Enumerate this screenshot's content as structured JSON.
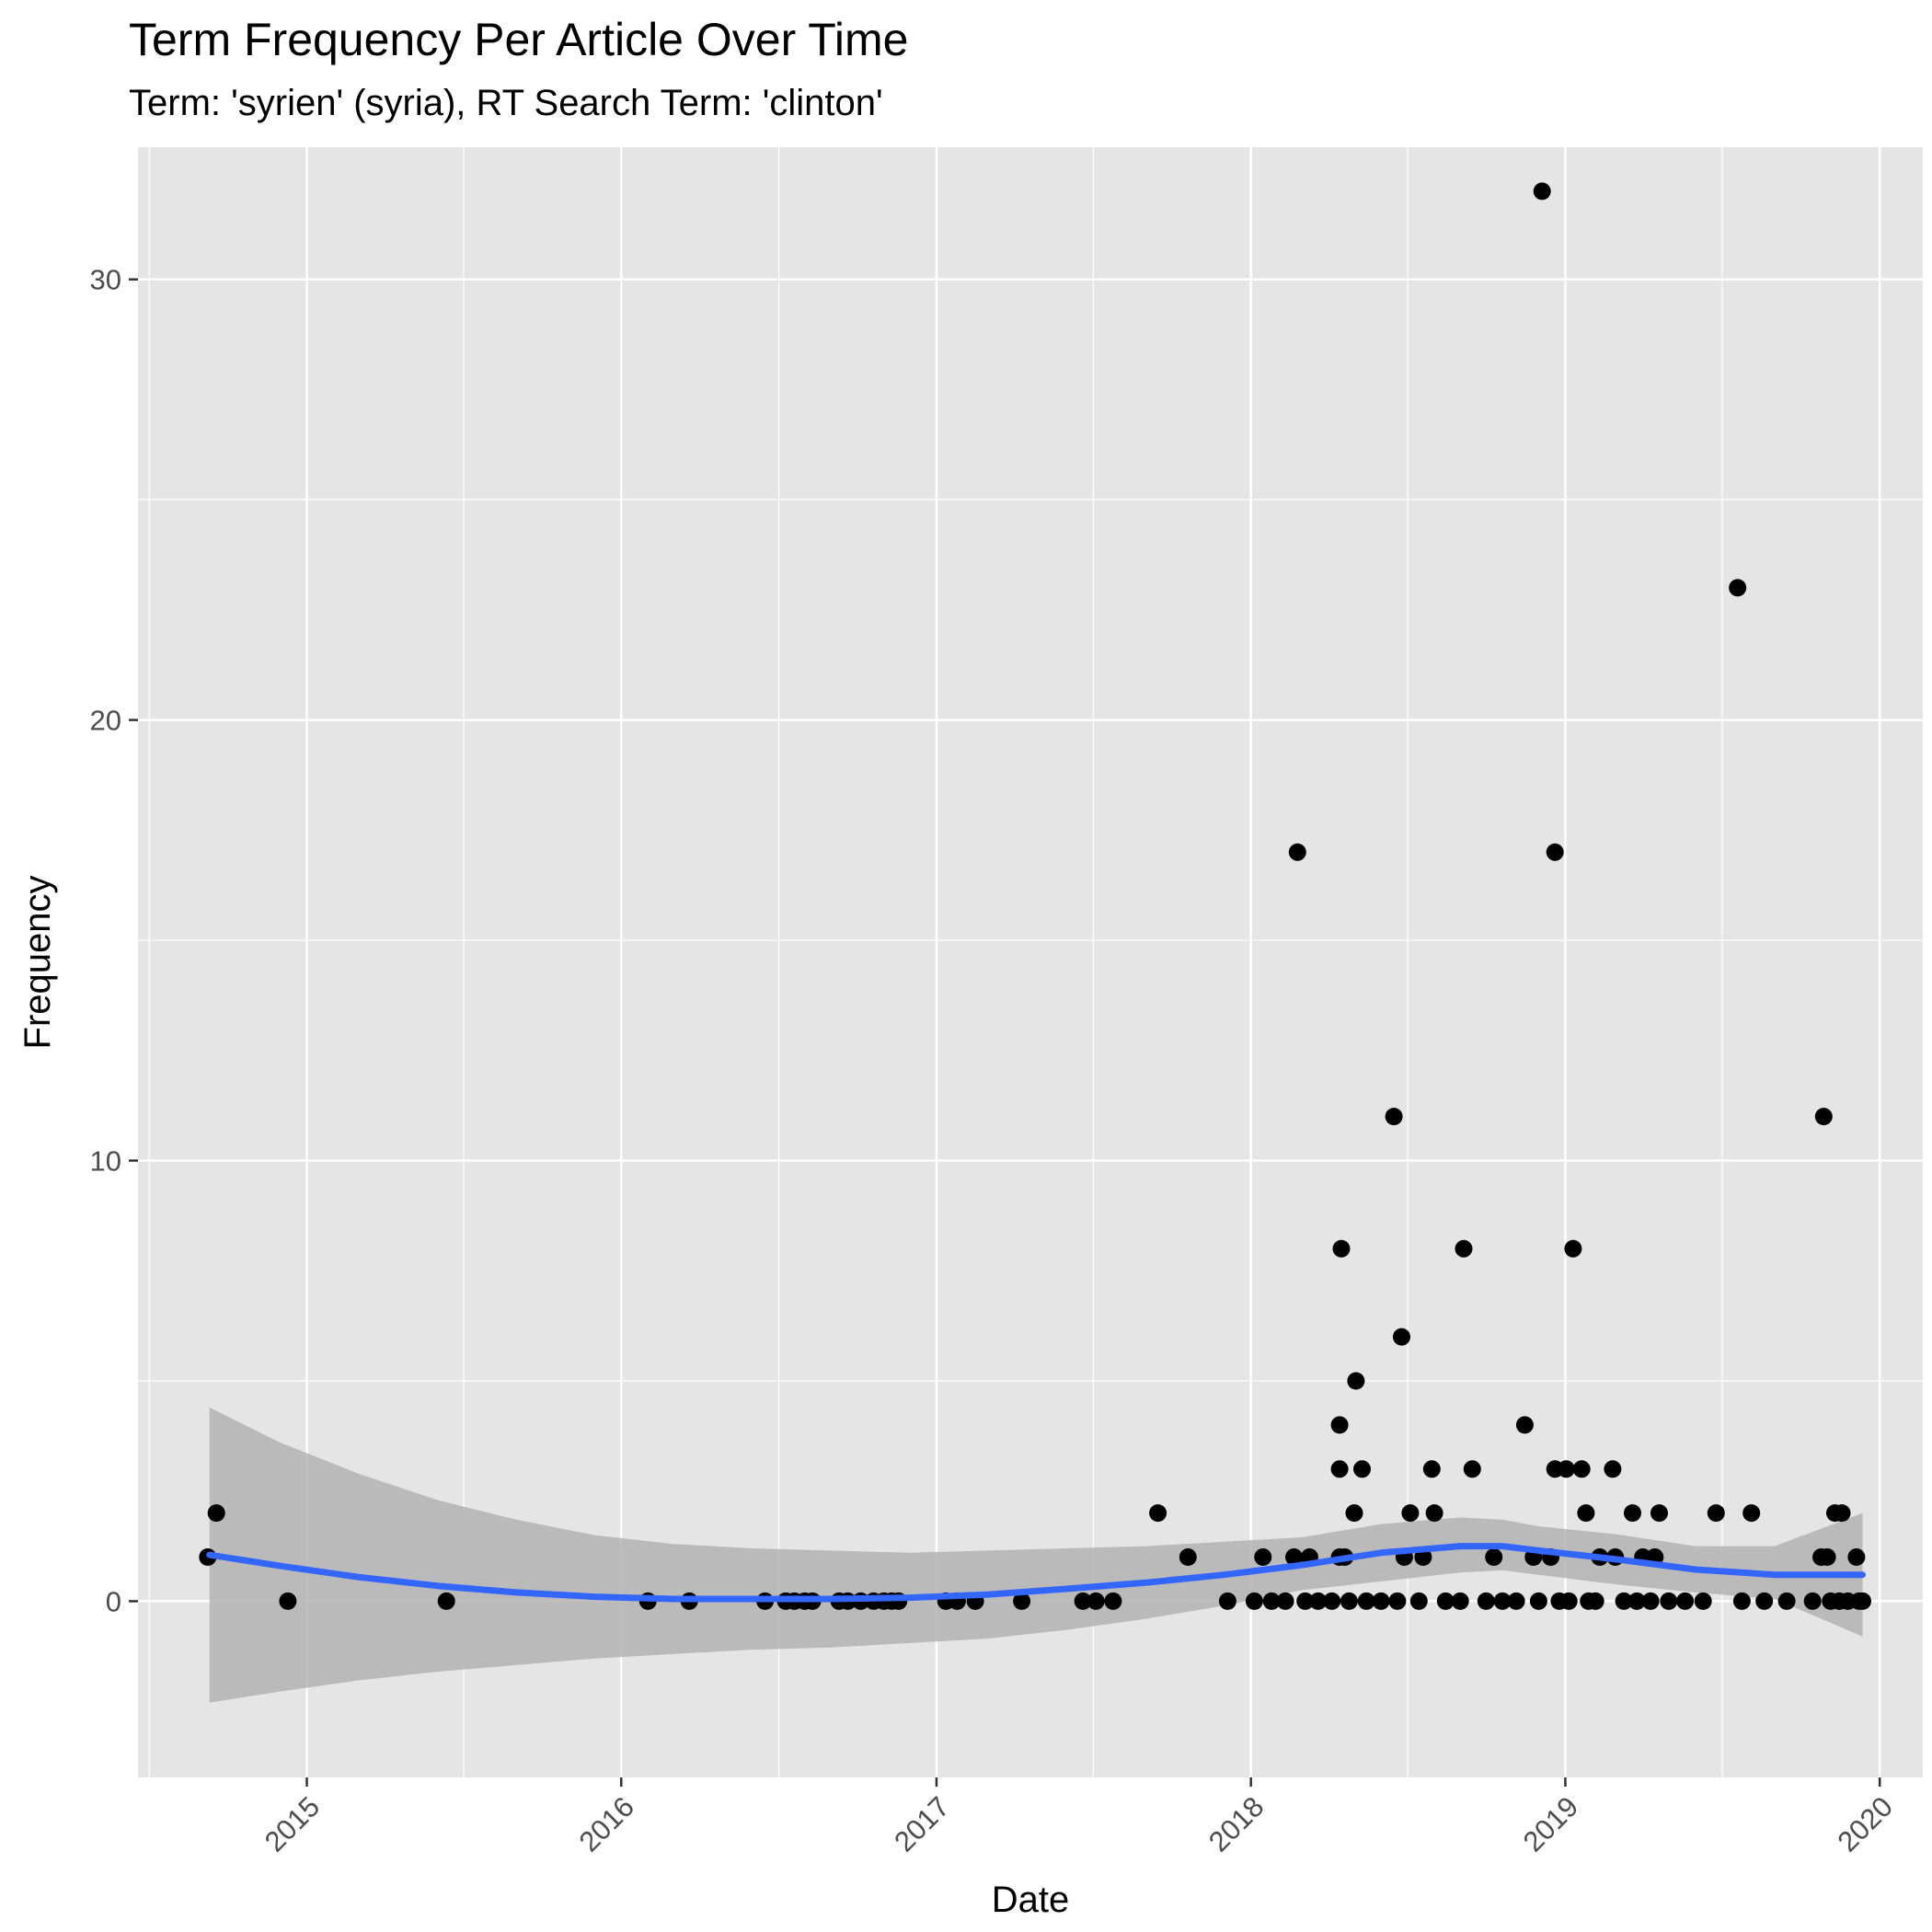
{
  "chart_data": {
    "type": "scatter",
    "title": "Term Frequency Per Article Over Time",
    "subtitle": "Term: 'syrien' (syria), RT Search Term: 'clinton'",
    "xlabel": "Date",
    "ylabel": "Frequency",
    "x_ticks": [
      "2015",
      "2016",
      "2017",
      "2018",
      "2019",
      "2020"
    ],
    "y_ticks": [
      0,
      10,
      20,
      30
    ],
    "xlim": [
      "2014-06-19",
      "2020-02-20"
    ],
    "ylim": [
      -4,
      33
    ],
    "grid": true,
    "colors": {
      "panel": "#e5e5e5",
      "grid": "#ffffff",
      "points": "#000000",
      "smooth_line": "#3366ff",
      "confidence_band": "#b3b3b3"
    },
    "points": [
      {
        "x": "2014-09-08",
        "y": 1
      },
      {
        "x": "2014-09-18",
        "y": 2
      },
      {
        "x": "2014-12-10",
        "y": 0
      },
      {
        "x": "2015-06-12",
        "y": 0
      },
      {
        "x": "2016-02-01",
        "y": 0
      },
      {
        "x": "2016-03-20",
        "y": 0
      },
      {
        "x": "2016-06-16",
        "y": 0
      },
      {
        "x": "2016-07-10",
        "y": 0
      },
      {
        "x": "2016-07-20",
        "y": 0
      },
      {
        "x": "2016-08-01",
        "y": 0
      },
      {
        "x": "2016-08-10",
        "y": 0
      },
      {
        "x": "2016-09-10",
        "y": 0
      },
      {
        "x": "2016-09-20",
        "y": 0
      },
      {
        "x": "2016-10-05",
        "y": 0
      },
      {
        "x": "2016-10-20",
        "y": 0
      },
      {
        "x": "2016-11-01",
        "y": 0
      },
      {
        "x": "2016-11-10",
        "y": 0
      },
      {
        "x": "2016-11-18",
        "y": 0
      },
      {
        "x": "2017-01-12",
        "y": 0
      },
      {
        "x": "2017-01-25",
        "y": 0
      },
      {
        "x": "2017-02-15",
        "y": 0
      },
      {
        "x": "2017-04-10",
        "y": 0
      },
      {
        "x": "2017-06-20",
        "y": 0
      },
      {
        "x": "2017-07-05",
        "y": 0
      },
      {
        "x": "2017-07-25",
        "y": 0
      },
      {
        "x": "2017-09-15",
        "y": 2
      },
      {
        "x": "2017-10-20",
        "y": 1
      },
      {
        "x": "2017-12-05",
        "y": 0
      },
      {
        "x": "2018-01-05",
        "y": 0
      },
      {
        "x": "2018-01-15",
        "y": 1
      },
      {
        "x": "2018-01-25",
        "y": 0
      },
      {
        "x": "2018-02-10",
        "y": 0
      },
      {
        "x": "2018-02-20",
        "y": 1
      },
      {
        "x": "2018-02-24",
        "y": 17
      },
      {
        "x": "2018-03-05",
        "y": 0
      },
      {
        "x": "2018-03-10",
        "y": 1
      },
      {
        "x": "2018-03-20",
        "y": 0
      },
      {
        "x": "2018-04-05",
        "y": 0
      },
      {
        "x": "2018-04-14",
        "y": 4
      },
      {
        "x": "2018-04-14",
        "y": 3
      },
      {
        "x": "2018-04-14",
        "y": 1
      },
      {
        "x": "2018-04-16",
        "y": 8
      },
      {
        "x": "2018-04-20",
        "y": 1
      },
      {
        "x": "2018-04-25",
        "y": 0
      },
      {
        "x": "2018-05-01",
        "y": 2
      },
      {
        "x": "2018-05-03",
        "y": 5
      },
      {
        "x": "2018-05-10",
        "y": 3
      },
      {
        "x": "2018-05-15",
        "y": 0
      },
      {
        "x": "2018-06-01",
        "y": 0
      },
      {
        "x": "2018-06-16",
        "y": 11
      },
      {
        "x": "2018-06-20",
        "y": 0
      },
      {
        "x": "2018-06-25",
        "y": 6
      },
      {
        "x": "2018-06-28",
        "y": 1
      },
      {
        "x": "2018-07-05",
        "y": 2
      },
      {
        "x": "2018-07-15",
        "y": 0
      },
      {
        "x": "2018-07-20",
        "y": 1
      },
      {
        "x": "2018-07-30",
        "y": 3
      },
      {
        "x": "2018-08-02",
        "y": 2
      },
      {
        "x": "2018-08-15",
        "y": 0
      },
      {
        "x": "2018-09-01",
        "y": 0
      },
      {
        "x": "2018-09-05",
        "y": 8
      },
      {
        "x": "2018-09-15",
        "y": 3
      },
      {
        "x": "2018-10-01",
        "y": 0
      },
      {
        "x": "2018-10-10",
        "y": 1
      },
      {
        "x": "2018-10-20",
        "y": 0
      },
      {
        "x": "2018-11-05",
        "y": 0
      },
      {
        "x": "2018-11-15",
        "y": 4
      },
      {
        "x": "2018-11-25",
        "y": 1
      },
      {
        "x": "2018-12-01",
        "y": 0
      },
      {
        "x": "2018-12-05",
        "y": 32
      },
      {
        "x": "2018-12-15",
        "y": 1
      },
      {
        "x": "2018-12-20",
        "y": 17
      },
      {
        "x": "2018-12-20",
        "y": 3
      },
      {
        "x": "2018-12-25",
        "y": 0
      },
      {
        "x": "2019-01-02",
        "y": 3
      },
      {
        "x": "2019-01-05",
        "y": 0
      },
      {
        "x": "2019-01-10",
        "y": 8
      },
      {
        "x": "2019-01-20",
        "y": 3
      },
      {
        "x": "2019-01-25",
        "y": 2
      },
      {
        "x": "2019-01-28",
        "y": 0
      },
      {
        "x": "2019-02-05",
        "y": 0
      },
      {
        "x": "2019-02-10",
        "y": 1
      },
      {
        "x": "2019-02-25",
        "y": 3
      },
      {
        "x": "2019-02-28",
        "y": 1
      },
      {
        "x": "2019-03-10",
        "y": 0
      },
      {
        "x": "2019-03-20",
        "y": 2
      },
      {
        "x": "2019-03-25",
        "y": 0
      },
      {
        "x": "2019-04-01",
        "y": 1
      },
      {
        "x": "2019-04-10",
        "y": 0
      },
      {
        "x": "2019-04-15",
        "y": 1
      },
      {
        "x": "2019-04-20",
        "y": 2
      },
      {
        "x": "2019-05-01",
        "y": 0
      },
      {
        "x": "2019-05-20",
        "y": 0
      },
      {
        "x": "2019-06-10",
        "y": 0
      },
      {
        "x": "2019-06-25",
        "y": 2
      },
      {
        "x": "2019-07-20",
        "y": 23
      },
      {
        "x": "2019-07-25",
        "y": 0
      },
      {
        "x": "2019-08-05",
        "y": 2
      },
      {
        "x": "2019-08-20",
        "y": 0
      },
      {
        "x": "2019-09-15",
        "y": 0
      },
      {
        "x": "2019-10-15",
        "y": 0
      },
      {
        "x": "2019-10-25",
        "y": 1
      },
      {
        "x": "2019-10-28",
        "y": 11
      },
      {
        "x": "2019-11-01",
        "y": 1
      },
      {
        "x": "2019-11-05",
        "y": 0
      },
      {
        "x": "2019-11-10",
        "y": 2
      },
      {
        "x": "2019-11-15",
        "y": 0
      },
      {
        "x": "2019-11-18",
        "y": 2
      },
      {
        "x": "2019-11-25",
        "y": 0
      },
      {
        "x": "2019-12-05",
        "y": 1
      },
      {
        "x": "2019-12-08",
        "y": 0
      },
      {
        "x": "2019-12-12",
        "y": 0
      }
    ],
    "smooth": {
      "x": [
        "2014-09-10",
        "2014-12-01",
        "2015-03-01",
        "2015-06-01",
        "2015-09-01",
        "2015-12-01",
        "2016-03-01",
        "2016-06-01",
        "2016-09-01",
        "2016-12-01",
        "2017-03-01",
        "2017-06-01",
        "2017-09-01",
        "2017-12-01",
        "2018-03-01",
        "2018-06-01",
        "2018-09-01",
        "2018-10-20",
        "2018-12-01",
        "2019-03-01",
        "2019-06-01",
        "2019-09-01",
        "2019-12-12"
      ],
      "y": [
        1.05,
        0.8,
        0.55,
        0.35,
        0.2,
        0.1,
        0.05,
        0.05,
        0.05,
        0.08,
        0.15,
        0.28,
        0.42,
        0.6,
        0.82,
        1.1,
        1.25,
        1.25,
        1.15,
        0.95,
        0.72,
        0.6,
        0.6
      ],
      "lower": [
        -2.3,
        -2.05,
        -1.8,
        -1.6,
        -1.45,
        -1.3,
        -1.2,
        -1.1,
        -1.05,
        -0.95,
        -0.85,
        -0.65,
        -0.4,
        -0.1,
        0.25,
        0.45,
        0.65,
        0.7,
        0.6,
        0.38,
        0.2,
        0.05,
        -0.8
      ],
      "upper": [
        4.4,
        3.6,
        2.9,
        2.3,
        1.85,
        1.5,
        1.3,
        1.2,
        1.15,
        1.1,
        1.15,
        1.2,
        1.25,
        1.35,
        1.45,
        1.75,
        1.9,
        1.85,
        1.7,
        1.52,
        1.25,
        1.25,
        2.0
      ]
    }
  }
}
